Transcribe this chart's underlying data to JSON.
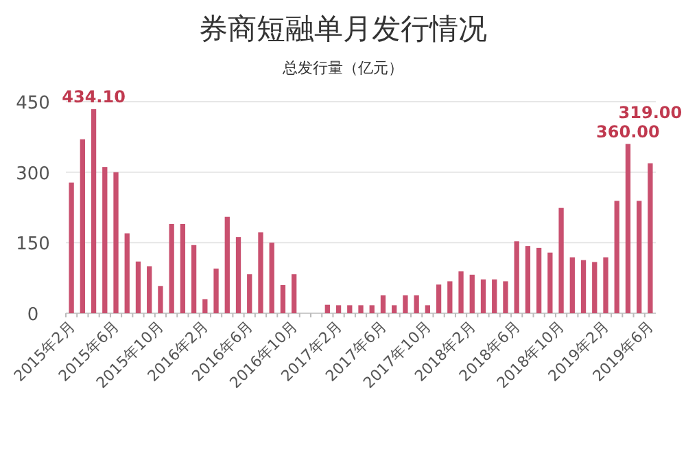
{
  "chart_data": {
    "type": "bar",
    "title": "券商短融单月发行情况",
    "subtitle": "总发行量（亿元）",
    "categories": [
      "2015年2月",
      null,
      null,
      null,
      "2015年6月",
      null,
      null,
      null,
      "2015年10月",
      null,
      null,
      null,
      "2016年2月",
      null,
      null,
      null,
      "2016年6月",
      null,
      null,
      null,
      "2016年10月",
      null,
      null,
      null,
      "2017年2月",
      null,
      null,
      null,
      "2017年6月",
      null,
      null,
      null,
      "2017年10月",
      null,
      null,
      null,
      "2018年2月",
      null,
      null,
      null,
      "2018年6月",
      null,
      null,
      null,
      "2018年10月",
      null,
      null,
      null,
      "2019年2月",
      null,
      null,
      null,
      "2019年6月"
    ],
    "values": [
      278,
      370,
      434.1,
      311,
      300,
      170,
      110,
      100,
      58,
      190,
      190,
      145,
      30,
      95,
      205,
      162,
      83,
      172,
      150,
      60,
      83,
      null,
      null,
      18,
      17,
      17,
      17,
      17,
      38,
      17,
      38,
      38,
      17,
      61,
      68,
      89,
      82,
      72,
      72,
      68,
      153,
      143,
      139,
      129,
      224,
      119,
      113,
      109,
      119,
      239,
      360,
      239,
      319
    ],
    "value_labels": [
      null,
      null,
      "434.10",
      null,
      null,
      null,
      null,
      null,
      null,
      null,
      null,
      null,
      null,
      null,
      null,
      null,
      null,
      null,
      null,
      null,
      null,
      null,
      null,
      null,
      null,
      null,
      null,
      null,
      null,
      null,
      null,
      null,
      null,
      null,
      null,
      null,
      null,
      null,
      null,
      null,
      null,
      null,
      null,
      null,
      null,
      null,
      null,
      null,
      null,
      null,
      "360.00",
      null,
      "319.00"
    ],
    "color": "#c9506f",
    "ylim": [
      0,
      450
    ],
    "yticks": [
      0,
      150,
      300,
      450
    ],
    "grid": "y"
  }
}
